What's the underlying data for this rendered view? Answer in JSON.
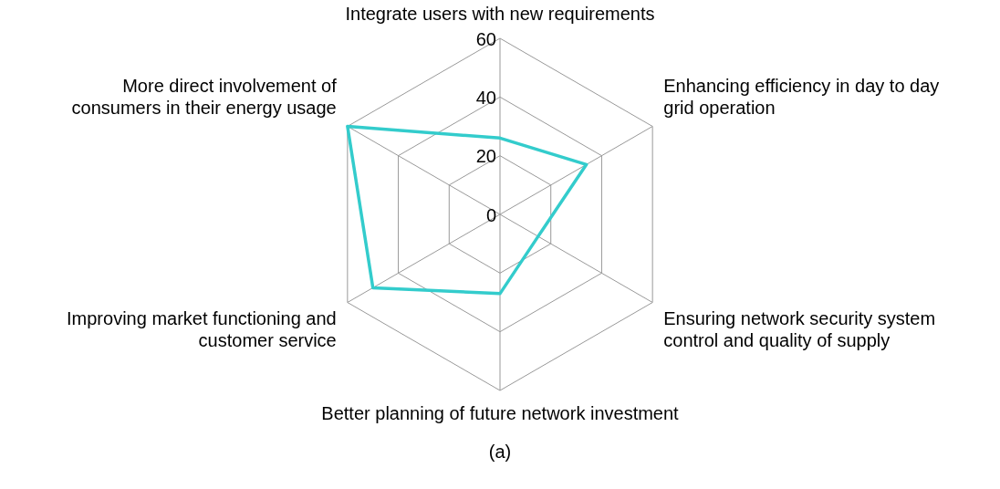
{
  "chart_data": {
    "type": "radar",
    "categories": [
      "Integrate users with new requirements",
      "Enhancing efficiency in day to day grid operation",
      "Ensuring network security system control and quality of supply",
      "Better planning of future network investment",
      "Improving market functioning and customer service",
      "More direct involvement of consumers in their energy usage"
    ],
    "series": [
      {
        "color": "#33cccc",
        "values": [
          26,
          34,
          15,
          27,
          50,
          60
        ]
      }
    ],
    "ylim": [
      0,
      60
    ],
    "yticks": [
      0,
      20,
      40,
      60
    ],
    "grid": true,
    "legend": false,
    "marker": "none",
    "line_style": "solid",
    "annotations": [
      "(a)"
    ]
  }
}
